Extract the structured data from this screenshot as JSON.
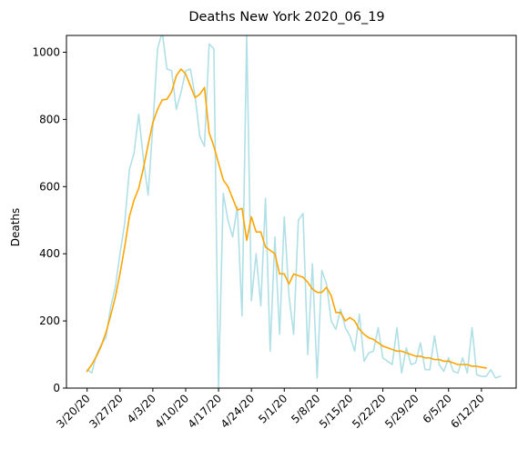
{
  "chart_data": {
    "type": "line",
    "title": "Deaths New York 2020_06_19",
    "xlabel": "",
    "ylabel": "Deaths",
    "ylim": [
      0,
      1050
    ],
    "yticks": [
      0,
      200,
      400,
      600,
      800,
      1000
    ],
    "xticks": [
      {
        "day": 0,
        "label": "3/20/20"
      },
      {
        "day": 7,
        "label": "3/27/20"
      },
      {
        "day": 14,
        "label": "4/3/20"
      },
      {
        "day": 21,
        "label": "4/10/20"
      },
      {
        "day": 28,
        "label": "4/17/20"
      },
      {
        "day": 35,
        "label": "4/24/20"
      },
      {
        "day": 42,
        "label": "5/1/20"
      },
      {
        "day": 49,
        "label": "5/8/20"
      },
      {
        "day": 56,
        "label": "5/15/20"
      },
      {
        "day": 63,
        "label": "5/22/20"
      },
      {
        "day": 70,
        "label": "5/29/20"
      },
      {
        "day": 77,
        "label": "6/5/20"
      },
      {
        "day": 84,
        "label": "6/12/20"
      }
    ],
    "grid": false,
    "series": [
      {
        "color": "#b0e0e6",
        "x": [
          0,
          1,
          2,
          3,
          4,
          5,
          6,
          7,
          8,
          9,
          10,
          11,
          12,
          13,
          14,
          15,
          16,
          17,
          18,
          19,
          20,
          21,
          22,
          23,
          24,
          25,
          26,
          27,
          28,
          29,
          30,
          31,
          32,
          33,
          34,
          35,
          36,
          37,
          38,
          39,
          40,
          41,
          42,
          43,
          44,
          45,
          46,
          47,
          48,
          49,
          50,
          51,
          52,
          53,
          54,
          55,
          56,
          57,
          58,
          59,
          60,
          61,
          62,
          63,
          64,
          65,
          66,
          67,
          68,
          69,
          70,
          71,
          72,
          73,
          74,
          75,
          76,
          77,
          78,
          79,
          80,
          81,
          82,
          83,
          84,
          85,
          86,
          87,
          88
        ],
        "y": [
          55,
          45,
          100,
          130,
          150,
          240,
          300,
          400,
          490,
          650,
          700,
          815,
          680,
          575,
          780,
          1010,
          1060,
          950,
          945,
          830,
          880,
          945,
          950,
          870,
          750,
          720,
          1025,
          1010,
          0,
          580,
          500,
          450,
          540,
          215,
          1050,
          260,
          400,
          245,
          565,
          110,
          450,
          160,
          510,
          275,
          160,
          500,
          520,
          100,
          370,
          30,
          350,
          310,
          200,
          175,
          235,
          180,
          155,
          110,
          220,
          80,
          105,
          110,
          180,
          90,
          80,
          70,
          180,
          45,
          120,
          70,
          75,
          135,
          55,
          55,
          155,
          70,
          50,
          90,
          50,
          45,
          90,
          45,
          180,
          40,
          35,
          35,
          55,
          30,
          35
        ]
      },
      {
        "color": "#ffa500",
        "x": [
          0,
          1,
          2,
          3,
          4,
          5,
          6,
          7,
          8,
          9,
          10,
          11,
          12,
          13,
          14,
          15,
          16,
          17,
          18,
          19,
          20,
          21,
          22,
          23,
          24,
          25,
          26,
          27,
          28,
          29,
          30,
          31,
          32,
          33,
          34,
          35,
          36,
          37,
          38,
          39,
          40,
          41,
          42,
          43,
          44,
          45,
          46,
          47,
          48,
          49,
          50,
          51,
          52,
          53,
          54,
          55,
          56,
          57,
          58,
          59,
          60,
          61,
          62,
          63,
          64,
          65,
          66,
          67,
          68,
          69,
          70,
          71,
          72,
          73,
          74,
          75,
          76,
          77,
          78,
          79,
          80,
          81,
          82,
          83,
          84,
          85
        ],
        "y": [
          50,
          70,
          95,
          125,
          165,
          215,
          270,
          340,
          420,
          510,
          560,
          595,
          655,
          725,
          790,
          830,
          858,
          860,
          882,
          930,
          950,
          935,
          900,
          865,
          875,
          895,
          760,
          720,
          670,
          620,
          600,
          565,
          530,
          535,
          440,
          510,
          465,
          465,
          420,
          410,
          400,
          340,
          340,
          310,
          340,
          335,
          330,
          315,
          295,
          285,
          285,
          300,
          275,
          225,
          225,
          200,
          210,
          200,
          175,
          160,
          150,
          145,
          135,
          125,
          120,
          115,
          110,
          110,
          105,
          100,
          95,
          95,
          90,
          90,
          85,
          85,
          80,
          80,
          75,
          70,
          70,
          70,
          65,
          65,
          62,
          60
        ]
      }
    ]
  }
}
